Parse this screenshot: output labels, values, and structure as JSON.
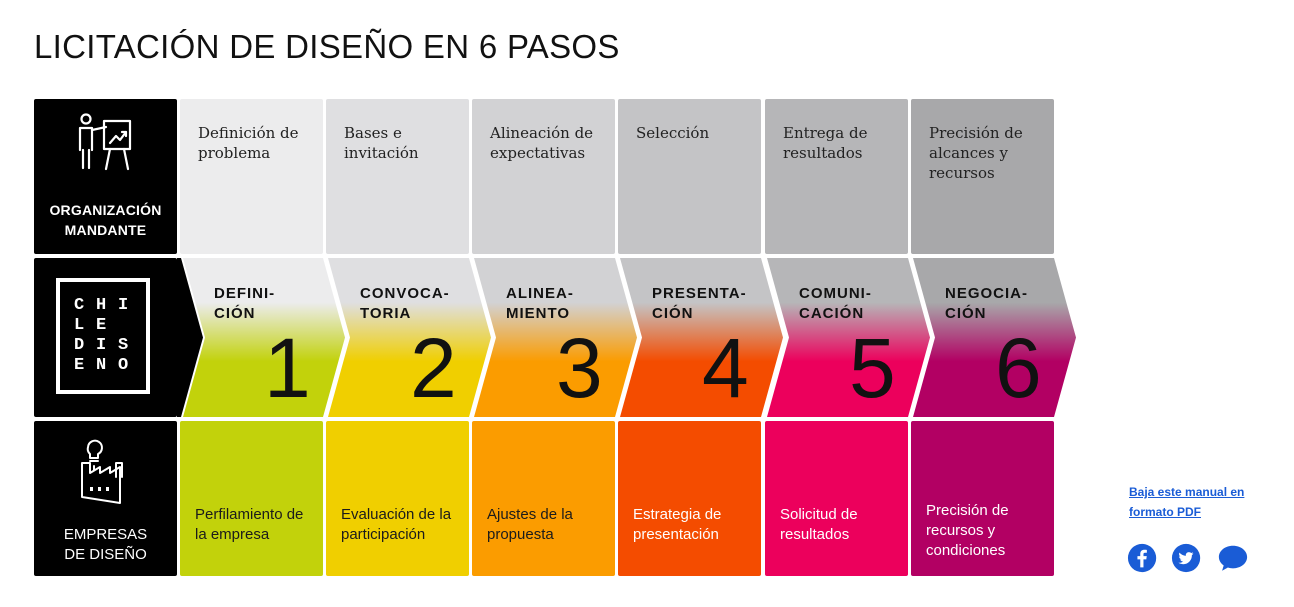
{
  "title": "LICITACIÓN DE DISEÑO EN 6 PASOS",
  "rows": {
    "top_label": "ORGANIZACIÓN\nMANDANTE",
    "bottom_label": "EMPRESAS\nDE DISEÑO"
  },
  "logo": {
    "letters": [
      "C",
      "H",
      "I",
      "L",
      "E",
      "",
      "D",
      "I",
      "S",
      "E",
      "N",
      "O"
    ]
  },
  "steps": [
    {
      "number": "1",
      "label": "DEFINI-\nCIÓN",
      "top_text": "Definición de\nproblema",
      "bottom_text": "Perfilamiento de la empresa",
      "color": "#c2d20b",
      "top_color": "#ececed",
      "text_color": "#1b1b1b"
    },
    {
      "number": "2",
      "label": "CONVOCA-\nTORIA",
      "top_text": "Bases e\ninvitación",
      "bottom_text": "Evaluación de la participación",
      "color": "#f0cf00",
      "top_color": "#dfdfe1",
      "text_color": "#1b1b1b"
    },
    {
      "number": "3",
      "label": "ALINEA-\nMIENTO",
      "top_text": "Alineación de\nexpectativas",
      "bottom_text": "Ajustes de la propuesta",
      "color": "#fb9c00",
      "top_color": "#d2d2d4",
      "text_color": "#1b1b1b"
    },
    {
      "number": "4",
      "label": "PRESENTA-\nCIÓN",
      "top_text": "Selección",
      "bottom_text": "Estrategia de presentación",
      "color": "#f44c00",
      "top_color": "#c4c4c6",
      "text_color": "#ffffff"
    },
    {
      "number": "5",
      "label": "COMUNI-\nCACIÓN",
      "top_text": "Entrega de\nresultados",
      "bottom_text": "Solicitud de resultados",
      "color": "#ec005c",
      "top_color": "#b6b6b8",
      "text_color": "#ffffff"
    },
    {
      "number": "6",
      "label": "NEGOCIA-\nCIÓN",
      "top_text": "Precisión de\nalcances y\nrecursos",
      "bottom_text": "Precisión de recursos y condiciones",
      "color": "#b20063",
      "top_color": "#a8a8aa",
      "text_color": "#ffffff"
    }
  ],
  "download_link": "Baja este manual en formato PDF",
  "social": [
    {
      "icon": "facebook-icon",
      "color": "#1a5cd6"
    },
    {
      "icon": "twitter-icon",
      "color": "#1a5cd6"
    },
    {
      "icon": "chat-icon",
      "color": "#1a5cd6"
    }
  ]
}
